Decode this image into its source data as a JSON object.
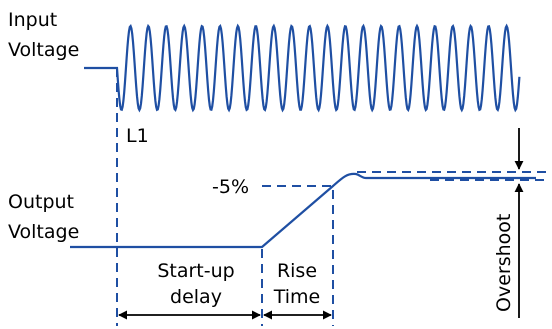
{
  "colors": {
    "signal": "#1f4fa3",
    "text": "#000000"
  },
  "labels": {
    "input_line1": "Input",
    "input_line2": "Voltage",
    "output_line1": "Output",
    "output_line2": "Voltage",
    "l1": "L1",
    "threshold": "-5%",
    "startup_line1": "Start-up",
    "startup_line2": "delay",
    "rise_line1": "Rise",
    "rise_line2": "Time",
    "overshoot": "Overshoot"
  }
}
